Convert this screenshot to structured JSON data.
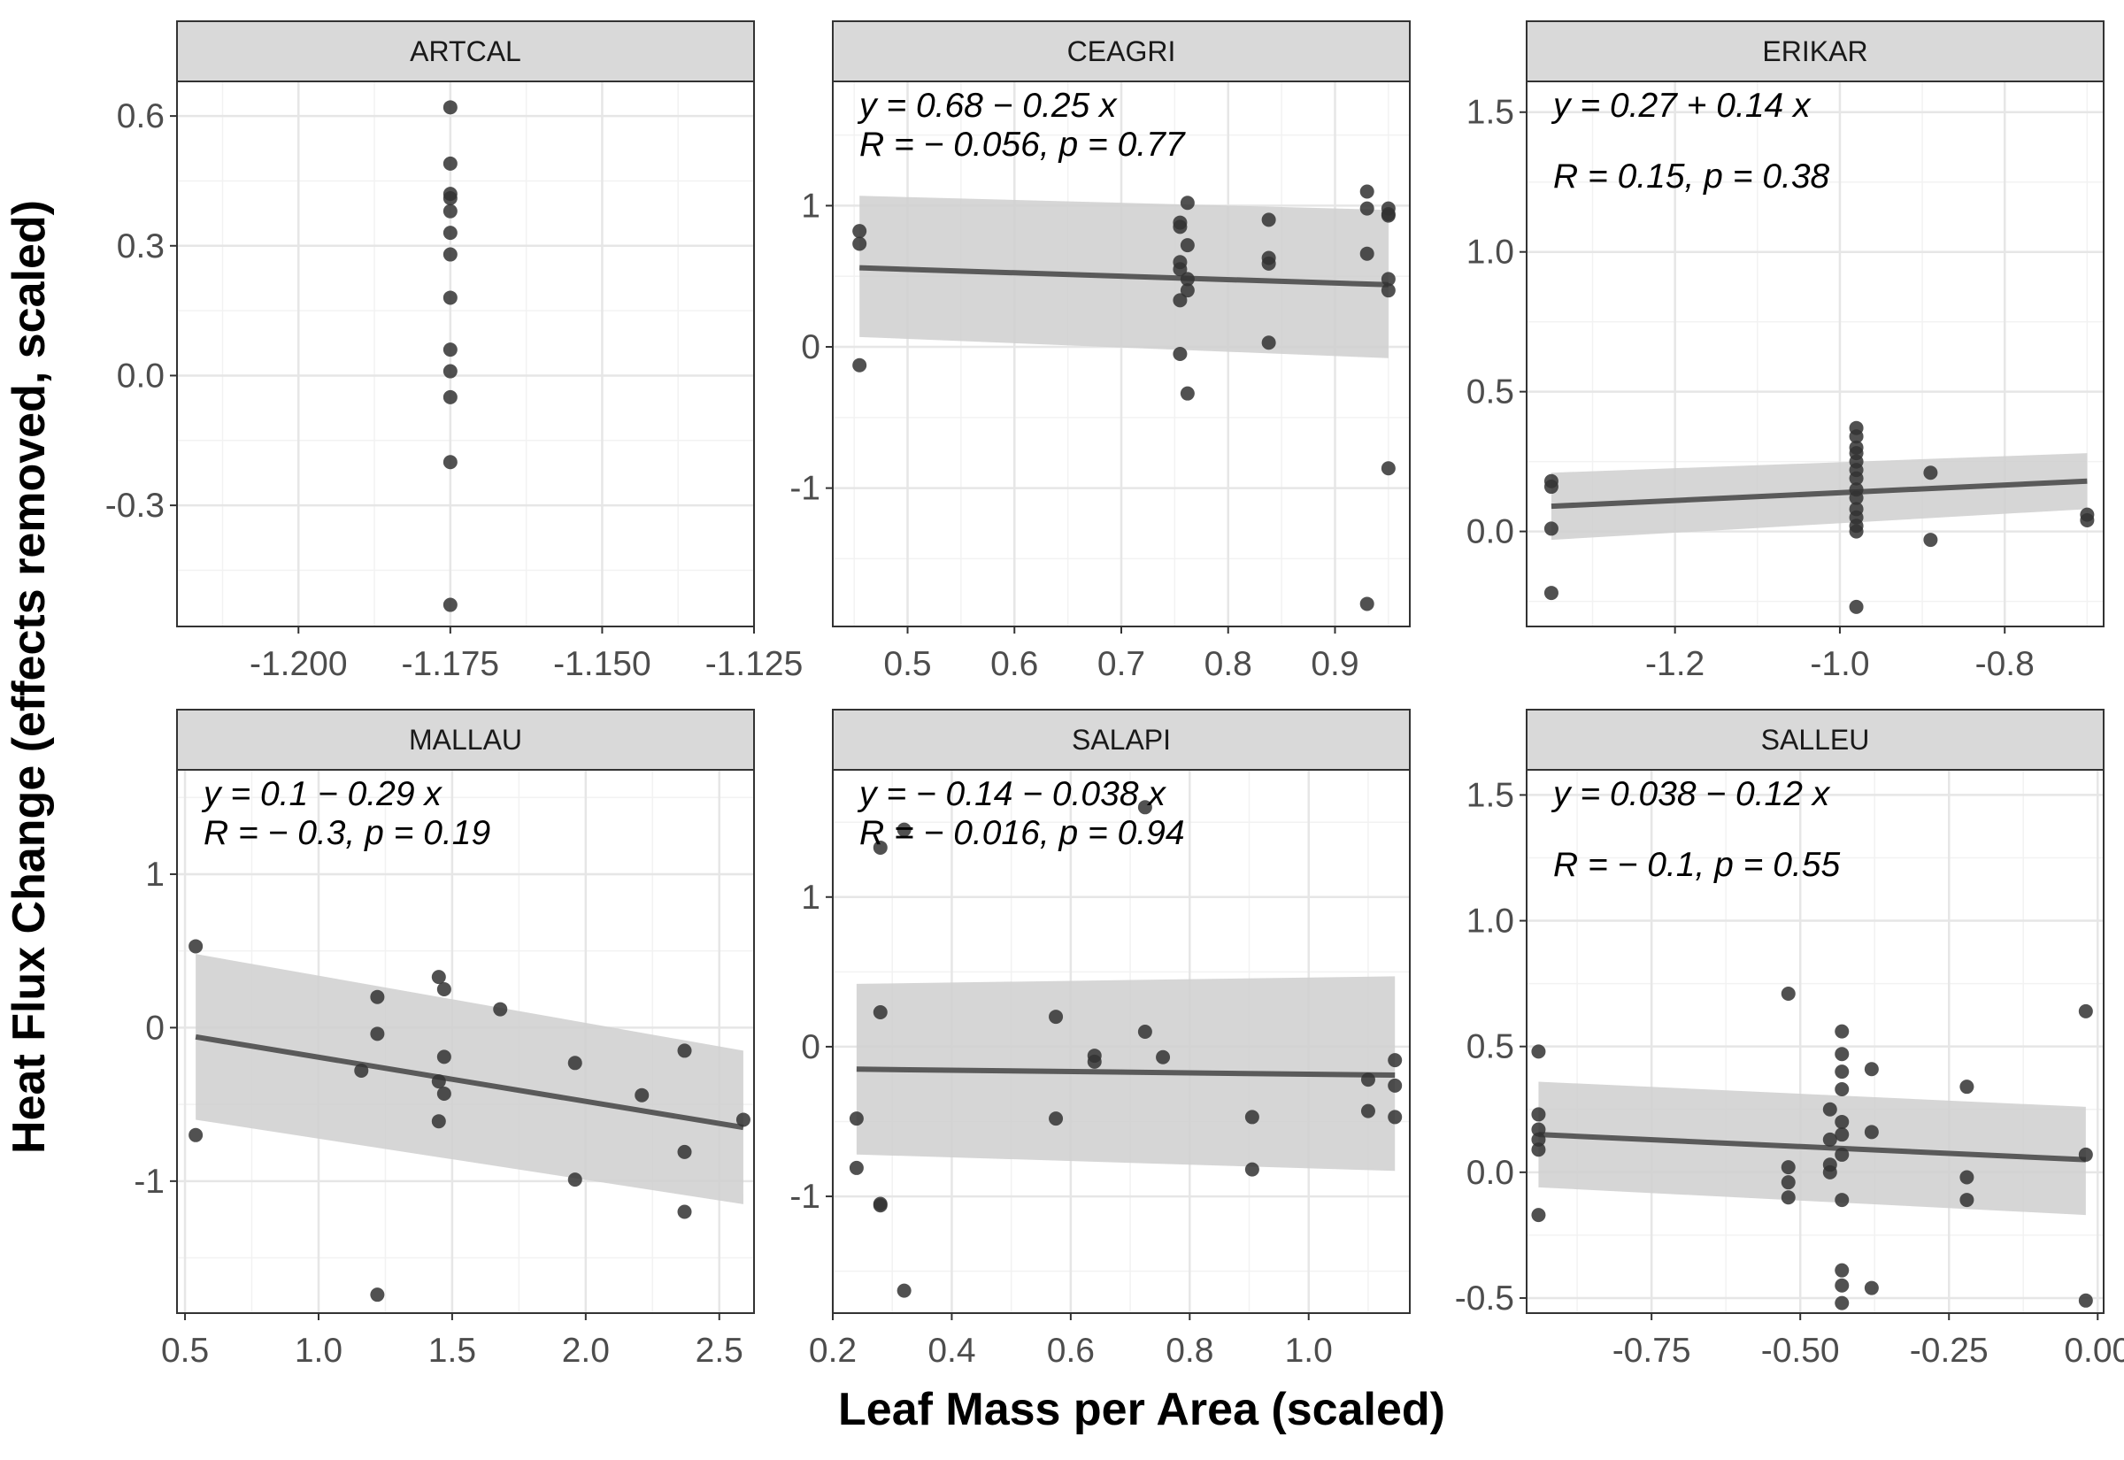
{
  "figure": {
    "xlabel": "Leaf Mass per Area (scaled)",
    "ylabel": "Heat Flux Change (effects removed, scaled)"
  },
  "colors": {
    "point": "#333333",
    "line": "#5a5a5a",
    "band": "#cfcfcf",
    "strip": "#d9d9d9",
    "grid_major": "#e6e6e6",
    "grid_minor": "#f2f2f2",
    "panel_border": "#333333"
  },
  "chart_data": [
    {
      "type": "scatter",
      "title": "ARTCAL",
      "xlim": [
        -1.22,
        -1.125
      ],
      "ylim": [
        -0.58,
        0.68
      ],
      "x_ticks": [
        -1.2,
        -1.175,
        -1.15,
        -1.125
      ],
      "x_tick_labels": [
        "-1.200",
        "-1.175",
        "-1.150",
        "-1.125"
      ],
      "y_ticks": [
        -0.3,
        0.0,
        0.3,
        0.6
      ],
      "y_tick_labels": [
        "-0.3",
        "0.0",
        "0.3",
        "0.6"
      ],
      "points": [
        [
          -1.175,
          0.62
        ],
        [
          -1.175,
          0.49
        ],
        [
          -1.175,
          0.42
        ],
        [
          -1.175,
          0.41
        ],
        [
          -1.175,
          0.38
        ],
        [
          -1.175,
          0.33
        ],
        [
          -1.175,
          0.28
        ],
        [
          -1.175,
          0.18
        ],
        [
          -1.175,
          0.06
        ],
        [
          -1.175,
          0.01
        ],
        [
          -1.175,
          -0.05
        ],
        [
          -1.175,
          -0.2
        ],
        [
          -1.175,
          -0.53
        ]
      ]
    },
    {
      "type": "scatter",
      "title": "CEAGRI",
      "xlim": [
        0.43,
        0.97
      ],
      "ylim": [
        -1.98,
        1.88
      ],
      "x_ticks": [
        0.5,
        0.6,
        0.7,
        0.8,
        0.9
      ],
      "x_tick_labels": [
        "0.5",
        "0.6",
        "0.7",
        "0.8",
        "0.9"
      ],
      "y_ticks": [
        -1,
        0,
        1
      ],
      "y_tick_labels": [
        "-1",
        "0",
        "1"
      ],
      "points": [
        [
          0.455,
          0.82
        ],
        [
          0.455,
          0.73
        ],
        [
          0.455,
          -0.13
        ],
        [
          0.755,
          0.88
        ],
        [
          0.755,
          0.85
        ],
        [
          0.755,
          0.6
        ],
        [
          0.755,
          0.55
        ],
        [
          0.755,
          0.33
        ],
        [
          0.755,
          -0.05
        ],
        [
          0.762,
          1.02
        ],
        [
          0.762,
          0.72
        ],
        [
          0.762,
          0.48
        ],
        [
          0.762,
          0.4
        ],
        [
          0.762,
          -0.33
        ],
        [
          0.838,
          0.9
        ],
        [
          0.838,
          0.63
        ],
        [
          0.838,
          0.59
        ],
        [
          0.838,
          0.03
        ],
        [
          0.93,
          1.1
        ],
        [
          0.93,
          0.98
        ],
        [
          0.93,
          0.66
        ],
        [
          0.93,
          -1.82
        ],
        [
          0.95,
          0.98
        ],
        [
          0.95,
          0.94
        ],
        [
          0.95,
          0.93
        ],
        [
          0.95,
          0.48
        ],
        [
          0.95,
          0.4
        ],
        [
          0.95,
          -0.86
        ]
      ],
      "fit": {
        "x": [
          0.455,
          0.95
        ],
        "y": [
          0.56,
          0.44
        ],
        "lower": [
          0.07,
          -0.08
        ],
        "upper": [
          1.07,
          0.97
        ]
      },
      "annotation": [
        "y = 0.68 − 0.25 x",
        "R = − 0.056, p = 0.77"
      ]
    },
    {
      "type": "scatter",
      "title": "ERIKAR",
      "xlim": [
        -1.38,
        -0.68
      ],
      "ylim": [
        -0.34,
        1.61
      ],
      "x_ticks": [
        -1.2,
        -1.0,
        -0.8
      ],
      "x_tick_labels": [
        "-1.2",
        "-1.0",
        "-0.8"
      ],
      "y_ticks": [
        0.0,
        0.5,
        1.0,
        1.5
      ],
      "y_tick_labels": [
        "0.0",
        "0.5",
        "1.0",
        "1.5"
      ],
      "points": [
        [
          -1.35,
          0.18
        ],
        [
          -1.35,
          0.16
        ],
        [
          -1.35,
          0.01
        ],
        [
          -1.35,
          -0.22
        ],
        [
          -0.98,
          0.37
        ],
        [
          -0.98,
          0.34
        ],
        [
          -0.98,
          0.3
        ],
        [
          -0.98,
          0.28
        ],
        [
          -0.98,
          0.25
        ],
        [
          -0.98,
          0.22
        ],
        [
          -0.98,
          0.19
        ],
        [
          -0.98,
          0.15
        ],
        [
          -0.98,
          0.12
        ],
        [
          -0.98,
          0.08
        ],
        [
          -0.98,
          0.05
        ],
        [
          -0.98,
          0.02
        ],
        [
          -0.98,
          0.0
        ],
        [
          -0.98,
          -0.27
        ],
        [
          -0.89,
          0.21
        ],
        [
          -0.89,
          -0.03
        ],
        [
          -0.7,
          0.06
        ],
        [
          -0.7,
          0.04
        ]
      ],
      "fit": {
        "x": [
          -1.35,
          -0.7
        ],
        "y": [
          0.09,
          0.18
        ],
        "lower": [
          -0.03,
          0.08
        ],
        "upper": [
          0.21,
          0.28
        ]
      },
      "annotation": [
        "y = 0.27 + 0.14 x",
        "R = 0.15, p = 0.38"
      ]
    },
    {
      "type": "scatter",
      "title": "MALLAU",
      "xlim": [
        0.47,
        2.63
      ],
      "ylim": [
        -1.86,
        1.68
      ],
      "x_ticks": [
        0.5,
        1.0,
        1.5,
        2.0,
        2.5
      ],
      "x_tick_labels": [
        "0.5",
        "1.0",
        "1.5",
        "2.0",
        "2.5"
      ],
      "y_ticks": [
        -1,
        0,
        1
      ],
      "y_tick_labels": [
        "-1",
        "0",
        "1"
      ],
      "points": [
        [
          0.54,
          0.53
        ],
        [
          0.54,
          -0.7
        ],
        [
          1.16,
          -0.28
        ],
        [
          1.22,
          0.2
        ],
        [
          1.22,
          -0.04
        ],
        [
          1.22,
          -1.74
        ],
        [
          1.45,
          0.33
        ],
        [
          1.45,
          -0.35
        ],
        [
          1.45,
          -0.61
        ],
        [
          1.47,
          0.25
        ],
        [
          1.47,
          -0.19
        ],
        [
          1.47,
          -0.43
        ],
        [
          1.68,
          0.12
        ],
        [
          1.96,
          -0.23
        ],
        [
          1.96,
          -0.99
        ],
        [
          2.21,
          -0.44
        ],
        [
          2.37,
          -0.15
        ],
        [
          2.37,
          -0.81
        ],
        [
          2.37,
          -1.2
        ],
        [
          2.59,
          -0.6
        ]
      ],
      "fit": {
        "x": [
          0.54,
          2.59
        ],
        "y": [
          -0.06,
          -0.65
        ],
        "lower": [
          -0.6,
          -1.15
        ],
        "upper": [
          0.48,
          -0.15
        ]
      },
      "annotation": [
        "y = 0.1 − 0.29 x",
        "R = − 0.3, p = 0.19"
      ]
    },
    {
      "type": "scatter",
      "title": "SALAPI",
      "xlim": [
        0.2,
        1.17
      ],
      "ylim": [
        -1.78,
        1.85
      ],
      "x_ticks": [
        0.2,
        0.4,
        0.6,
        0.8,
        1.0
      ],
      "x_tick_labels": [
        "0.2",
        "0.4",
        "0.6",
        "0.8",
        "1.0"
      ],
      "y_ticks": [
        -1,
        0,
        1
      ],
      "y_tick_labels": [
        "-1",
        "0",
        "1"
      ],
      "points": [
        [
          0.24,
          -0.48
        ],
        [
          0.24,
          -0.81
        ],
        [
          0.28,
          1.33
        ],
        [
          0.28,
          0.23
        ],
        [
          0.28,
          -1.05
        ],
        [
          0.28,
          -1.06
        ],
        [
          0.32,
          1.45
        ],
        [
          0.32,
          -1.63
        ],
        [
          0.575,
          0.2
        ],
        [
          0.575,
          -0.48
        ],
        [
          0.64,
          -0.06
        ],
        [
          0.64,
          -0.1
        ],
        [
          0.725,
          1.6
        ],
        [
          0.725,
          0.1
        ],
        [
          0.755,
          -0.07
        ],
        [
          0.905,
          -0.47
        ],
        [
          0.905,
          -0.82
        ],
        [
          1.1,
          -0.22
        ],
        [
          1.1,
          -0.43
        ],
        [
          1.145,
          -0.09
        ],
        [
          1.145,
          -0.26
        ],
        [
          1.145,
          -0.47
        ]
      ],
      "fit": {
        "x": [
          0.24,
          1.145
        ],
        "y": [
          -0.15,
          -0.19
        ],
        "lower": [
          -0.72,
          -0.83
        ],
        "upper": [
          0.42,
          0.47
        ]
      },
      "annotation": [
        "y = − 0.14 − 0.038 x",
        "R = − 0.016, p = 0.94"
      ]
    },
    {
      "type": "scatter",
      "title": "SALLEU",
      "xlim": [
        -0.96,
        0.01
      ],
      "ylim": [
        -0.56,
        1.6
      ],
      "x_ticks": [
        -0.75,
        -0.5,
        -0.25,
        0.0
      ],
      "x_tick_labels": [
        "-0.75",
        "-0.50",
        "-0.25",
        "0.00"
      ],
      "y_ticks": [
        -0.5,
        0.0,
        0.5,
        1.0,
        1.5
      ],
      "y_tick_labels": [
        "-0.5",
        "0.0",
        "0.5",
        "1.0",
        "1.5"
      ],
      "points": [
        [
          -0.94,
          0.48
        ],
        [
          -0.94,
          0.23
        ],
        [
          -0.94,
          0.17
        ],
        [
          -0.94,
          0.13
        ],
        [
          -0.94,
          0.09
        ],
        [
          -0.94,
          -0.17
        ],
        [
          -0.52,
          0.71
        ],
        [
          -0.52,
          0.02
        ],
        [
          -0.52,
          -0.04
        ],
        [
          -0.52,
          -0.1
        ],
        [
          -0.45,
          0.25
        ],
        [
          -0.45,
          0.13
        ],
        [
          -0.45,
          0.03
        ],
        [
          -0.45,
          0.0
        ],
        [
          -0.43,
          0.56
        ],
        [
          -0.43,
          0.47
        ],
        [
          -0.43,
          0.4
        ],
        [
          -0.43,
          0.33
        ],
        [
          -0.43,
          0.2
        ],
        [
          -0.43,
          0.15
        ],
        [
          -0.43,
          0.07
        ],
        [
          -0.43,
          -0.11
        ],
        [
          -0.43,
          -0.39
        ],
        [
          -0.43,
          -0.45
        ],
        [
          -0.43,
          -0.52
        ],
        [
          -0.38,
          0.41
        ],
        [
          -0.38,
          0.16
        ],
        [
          -0.38,
          -0.46
        ],
        [
          -0.22,
          0.34
        ],
        [
          -0.22,
          -0.02
        ],
        [
          -0.22,
          -0.11
        ],
        [
          -0.02,
          0.64
        ],
        [
          -0.02,
          0.07
        ],
        [
          -0.02,
          -0.51
        ]
      ],
      "fit": {
        "x": [
          -0.94,
          -0.02
        ],
        "y": [
          0.15,
          0.05
        ],
        "lower": [
          -0.06,
          -0.17
        ],
        "upper": [
          0.36,
          0.26
        ]
      },
      "annotation": [
        "y = 0.038 − 0.12 x",
        "R = − 0.1, p = 0.55"
      ]
    }
  ]
}
